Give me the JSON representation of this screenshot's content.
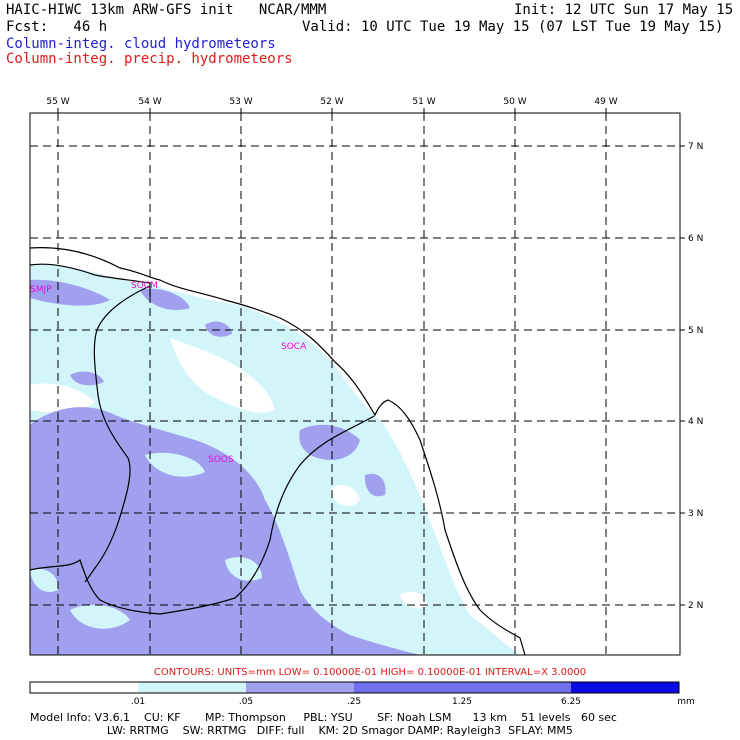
{
  "header": {
    "title": "HAIC-HIWC 13km ARW-GFS init   NCAR/MMM",
    "init": "Init: 12 UTC Sun 17 May 15",
    "fcst": "Fcst:   46 h",
    "valid": "Valid: 10 UTC Tue 19 May 15 (07 LST Tue 19 May 15)",
    "field1": "Column-integ. cloud hydrometeors",
    "field2": "Column-integ. precip. hydrometeors"
  },
  "map": {
    "lon_labels": [
      "55 W",
      "54 W",
      "53 W",
      "52 W",
      "51 W",
      "50 W",
      "49 W"
    ],
    "lat_labels": [
      "7 N",
      "6 N",
      "5 N",
      "4 N",
      "3 N",
      "2 N"
    ],
    "stations": [
      "SMJP",
      "SOCM",
      "SOCA",
      "SOOS"
    ],
    "colors": {
      "level1": "#d2f5fa",
      "level2": "#a0a0ef",
      "level3": "#7070ee",
      "level4": "#3c3ce8",
      "level5": "#0a0ae6",
      "station": "#e010d8"
    }
  },
  "contours": "CONTOURS:  UNITS=mm  LOW= 0.10000E-01  HIGH= 0.10000E-01  INTERVAL=X  3.0000",
  "legend": {
    "ticks": [
      ".01",
      ".05",
      ".25",
      "1.25",
      "6.25"
    ],
    "unit": "mm"
  },
  "footer": {
    "line1": "Model Info: V3.6.1    CU: KF       MP: Thompson     PBL: YSU       SF: Noah LSM      13 km    51 levels   60 sec",
    "line2": "                      LW: RRTMG    SW: RRTMG   DIFF: full    KM: 2D Smagor DAMP: Rayleigh3  SFLAY: MM5"
  }
}
